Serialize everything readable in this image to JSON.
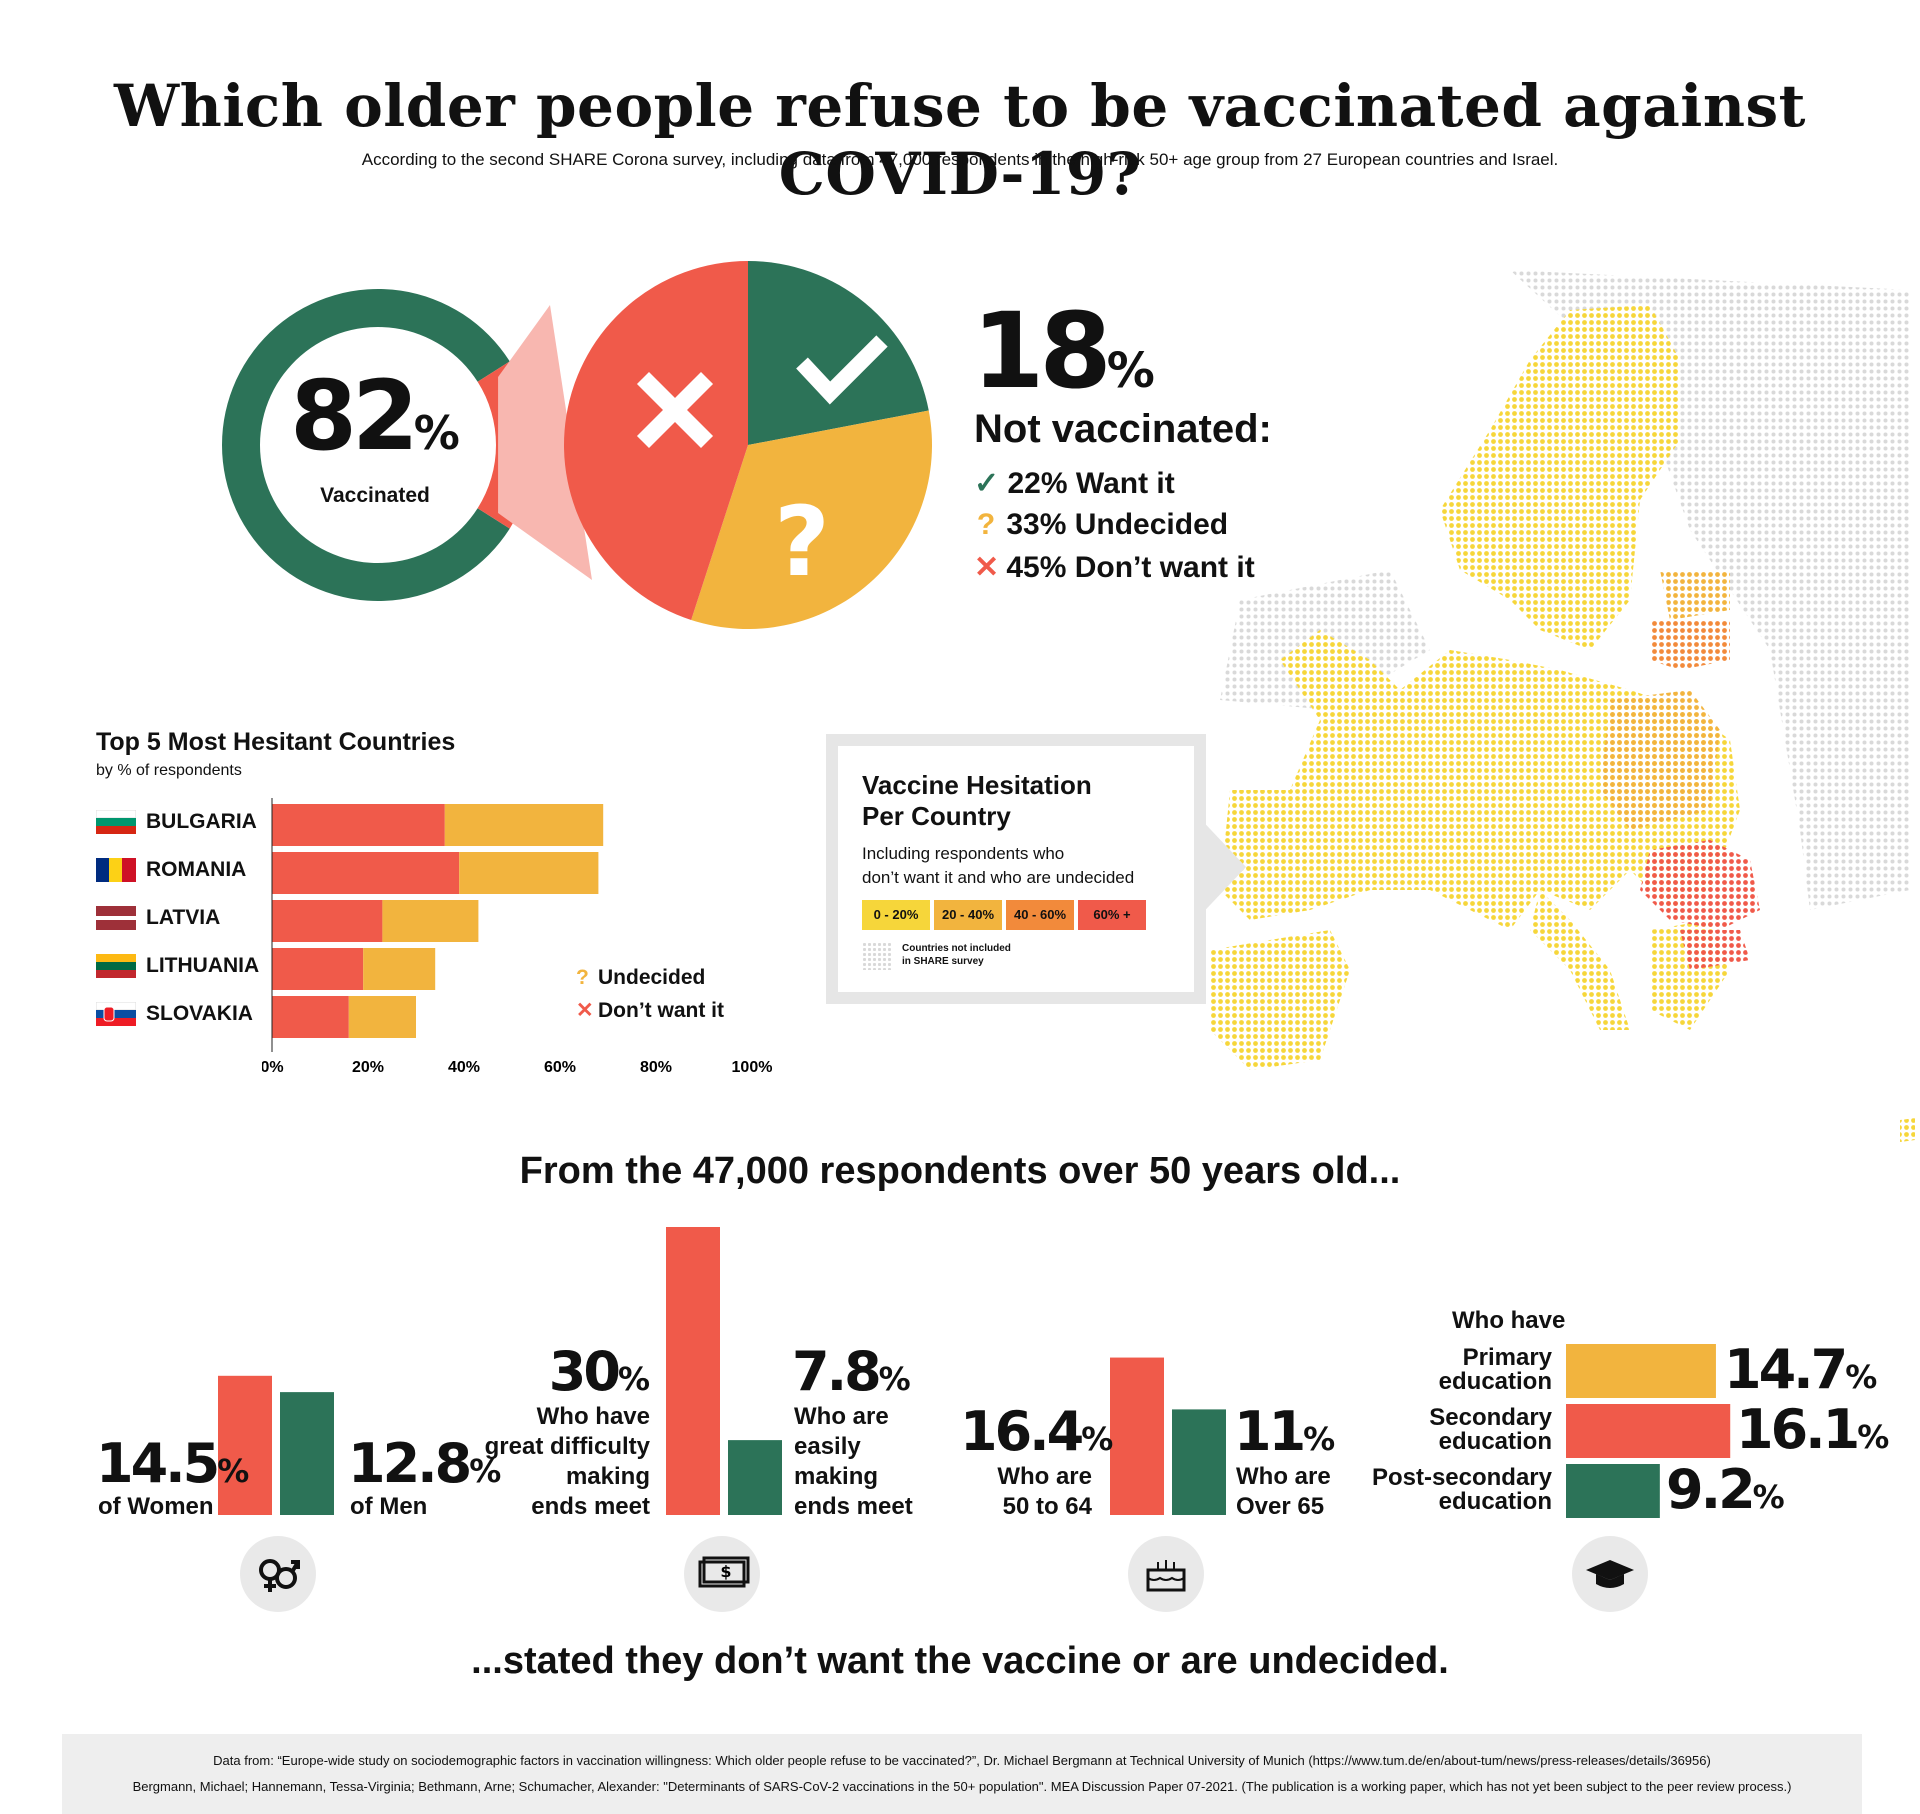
{
  "title": "Which older people refuse to be vaccinated against COVID-19?",
  "subtitle": "According to the second SHARE Corona survey, including data from 47,000 respondents in the high-risk 50+ age group from 27 European countries and Israel.",
  "colors": {
    "green": "#2c7358",
    "red": "#f05a4a",
    "yellow": "#f2b43e",
    "light_yellow": "#f6d63a",
    "orange": "#f28a3b",
    "pink": "#f8b7b0"
  },
  "vaccinated": {
    "value": "82",
    "pct": "%",
    "label": "Vaccinated"
  },
  "not_vaccinated": {
    "value": "18",
    "pct": "%",
    "label": "Not vaccinated:",
    "items": [
      {
        "icon": "check-icon",
        "glyph": "✓",
        "text": "22% Want it"
      },
      {
        "icon": "question-icon",
        "glyph": "?",
        "text": "33% Undecided"
      },
      {
        "icon": "cross-icon",
        "glyph": "✕",
        "text": "45% Don’t want it"
      }
    ]
  },
  "top5": {
    "title": "Top 5 Most Hesitant Countries",
    "subtitle": "by % of respondents",
    "legend": [
      {
        "icon": "question-icon",
        "glyph": "?",
        "text": "Undecided"
      },
      {
        "icon": "cross-icon",
        "glyph": "✕",
        "text": "Don’t want it"
      }
    ]
  },
  "map_box": {
    "title_line1": "Vaccine Hesitation",
    "title_line2": "Per Country",
    "desc_line1": "Including respondents who",
    "desc_line2": "don’t want it and who are undecided",
    "ranges": [
      "0 - 20%",
      "20 - 40%",
      "40 - 60%",
      "60% +"
    ],
    "note_line1": "Countries not included",
    "note_line2": "in SHARE survey"
  },
  "respondents_heading": "From the 47,000 respondents over 50 years old...",
  "closing": "...stated they don’t want the vaccine or are undecided.",
  "stats": {
    "women": {
      "num": "14.5",
      "pct": "%",
      "label": "of Women"
    },
    "men": {
      "num": "12.8",
      "pct": "%",
      "label": "of Men"
    },
    "difficulty": {
      "num": "30",
      "pct": "%",
      "l1": "Who have",
      "l2": "great difficulty",
      "l3": "making",
      "l4": "ends meet"
    },
    "easily": {
      "num": "7.8",
      "pct": "%",
      "l1": "Who are",
      "l2": "easily",
      "l3": "making",
      "l4": "ends meet"
    },
    "age5064": {
      "num": "16.4",
      "pct": "%",
      "l1": "Who are",
      "l2": "50 to 64"
    },
    "age65": {
      "num": "11",
      "pct": "%",
      "l1": "Who are",
      "l2": "Over 65"
    },
    "edu_heading": "Who have",
    "primary": {
      "num": "14.7",
      "pct": "%",
      "l1": "Primary",
      "l2": "education"
    },
    "secondary": {
      "num": "16.1",
      "pct": "%",
      "l1": "Secondary",
      "l2": "education"
    },
    "postsec": {
      "num": "9.2",
      "pct": "%",
      "l1": "Post-secondary",
      "l2": "education"
    }
  },
  "footer_line1": "Data from: “Europe-wide study on sociodemographic factors in vaccination willingness: Which older people refuse to be vaccinated?”, Dr. Michael Bergmann at Technical University of Munich (https://www.tum.de/en/about-tum/news/press-releases/details/36956)",
  "footer_line2": "Bergmann, Michael; Hannemann, Tessa-Virginia; Bethmann, Arne; Schumacher, Alexander: \"Determinants of SARS-CoV-2 vaccinations in the 50+ population\". MEA Discussion Paper 07-2021. (The publication is a working paper, which has not yet been subject to the peer review process.)",
  "chart_data": [
    {
      "type": "pie",
      "title": "",
      "categories": [
        "Vaccinated",
        "Not vaccinated"
      ],
      "values": [
        82,
        18
      ]
    },
    {
      "type": "pie",
      "title": "",
      "categories": [
        "Want it",
        "Undecided",
        "Don’t want it"
      ],
      "values": [
        22,
        33,
        45
      ]
    },
    {
      "type": "bar",
      "orientation": "horizontal",
      "stacked": true,
      "title": "Top 5 Most Hesitant Countries",
      "categories": [
        "BULGARIA",
        "ROMANIA",
        "LATVIA",
        "LITHUANIA",
        "SLOVAKIA"
      ],
      "series": [
        {
          "name": "Don’t want it",
          "values": [
            36,
            39,
            23,
            19,
            16
          ]
        },
        {
          "name": "Undecided",
          "values": [
            33,
            29,
            20,
            15,
            14
          ]
        }
      ],
      "xlim": [
        0,
        100
      ],
      "x_ticks": [
        "0%",
        "20%",
        "40%",
        "60%",
        "80%",
        "100%"
      ]
    },
    {
      "type": "bar",
      "categories": [
        "Women",
        "Men"
      ],
      "values": [
        14.5,
        12.8
      ]
    },
    {
      "type": "bar",
      "categories": [
        "Great difficulty making ends meet",
        "Easily making ends meet"
      ],
      "values": [
        30,
        7.8
      ]
    },
    {
      "type": "bar",
      "categories": [
        "50 to 64",
        "Over 65"
      ],
      "values": [
        16.4,
        11
      ]
    },
    {
      "type": "bar",
      "orientation": "horizontal",
      "categories": [
        "Primary education",
        "Secondary education",
        "Post-secondary education"
      ],
      "values": [
        14.7,
        16.1,
        9.2
      ]
    }
  ]
}
